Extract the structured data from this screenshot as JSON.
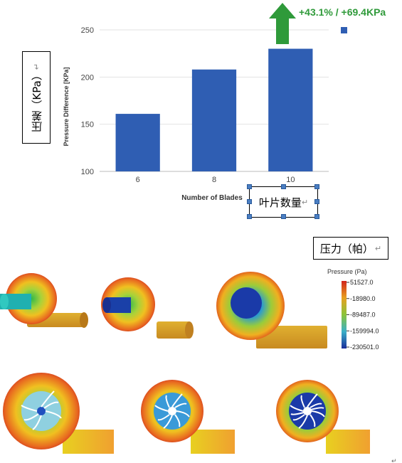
{
  "chart_data": {
    "type": "bar",
    "categories": [
      "6",
      "8",
      "10"
    ],
    "values": [
      161,
      208,
      230
    ],
    "ylabel": "Pressure Difference [KPa]",
    "xlabel": "Number of Blades",
    "ylim": [
      100,
      250
    ],
    "yticks": [
      "100",
      "150",
      "200",
      "250"
    ],
    "bar_color": "#2f5eb3",
    "grid": true,
    "legend": "top-right",
    "annotation": "+43.1% / +69.4KPa",
    "annotation_color": "#2f9a3a"
  },
  "annotations": {
    "ylabel_cn": "压差（KPa）",
    "xlabel_cn": "叶片数量",
    "pressure_cn": "压力（帕）",
    "return_mark": "↵"
  },
  "colorbar": {
    "title": "Pressure (Pa)",
    "ticks": [
      "51527.0",
      "-18980.0",
      "-89487.0",
      "-159994.0",
      "-230501.0"
    ],
    "colors": [
      "#d1241c",
      "#e8a020",
      "#8ac43a",
      "#3ab0c8",
      "#1a2e9a"
    ]
  }
}
